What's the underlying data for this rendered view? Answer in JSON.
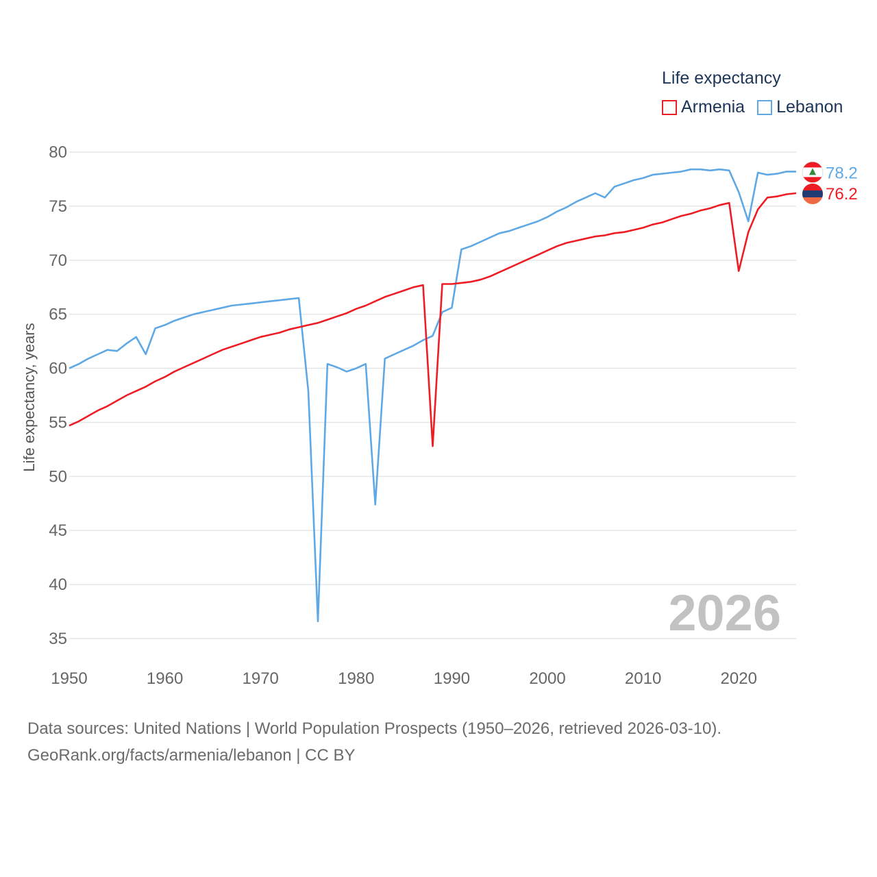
{
  "legend": {
    "title": "Life expectancy",
    "armenia_label": "Armenia",
    "lebanon_label": "Lebanon"
  },
  "colors": {
    "armenia": "#ee1c25",
    "lebanon": "#5ea8e5",
    "grid": "#e6e6e6",
    "tick": "#666666",
    "year": "#c2c2c2"
  },
  "year_watermark": "2026",
  "source_line1": "Data sources: United Nations | World Population Prospects (1950–2026, retrieved 2026-03-10).",
  "source_line2": "GeoRank.org/facts/armenia/lebanon | CC BY",
  "chart_data": {
    "type": "line",
    "title": "Life expectancy",
    "xlabel": "",
    "ylabel": "Life expectancy, years",
    "xlim": [
      1950,
      2026
    ],
    "ylim": [
      35,
      80
    ],
    "yticks": [
      35,
      40,
      45,
      50,
      55,
      60,
      65,
      70,
      75,
      80
    ],
    "xticks": [
      1950,
      1960,
      1970,
      1980,
      1990,
      2000,
      2010,
      2020
    ],
    "grid": true,
    "legend_position": "top-right",
    "end_labels": {
      "Lebanon": "78.2",
      "Armenia": "76.2"
    },
    "x": [
      1950,
      1951,
      1952,
      1953,
      1954,
      1955,
      1956,
      1957,
      1958,
      1959,
      1960,
      1961,
      1962,
      1963,
      1964,
      1965,
      1966,
      1967,
      1968,
      1969,
      1970,
      1971,
      1972,
      1973,
      1974,
      1975,
      1976,
      1977,
      1978,
      1979,
      1980,
      1981,
      1982,
      1983,
      1984,
      1985,
      1986,
      1987,
      1988,
      1989,
      1990,
      1991,
      1992,
      1993,
      1994,
      1995,
      1996,
      1997,
      1998,
      1999,
      2000,
      2001,
      2002,
      2003,
      2004,
      2005,
      2006,
      2007,
      2008,
      2009,
      2010,
      2011,
      2012,
      2013,
      2014,
      2015,
      2016,
      2017,
      2018,
      2019,
      2020,
      2021,
      2022,
      2023,
      2024,
      2025,
      2026
    ],
    "series": [
      {
        "name": "Armenia",
        "color": "#ee1c25",
        "values": [
          54.7,
          55.1,
          55.6,
          56.1,
          56.5,
          57.0,
          57.5,
          57.9,
          58.3,
          58.8,
          59.2,
          59.7,
          60.1,
          60.5,
          60.9,
          61.3,
          61.7,
          62.0,
          62.3,
          62.6,
          62.9,
          63.1,
          63.3,
          63.6,
          63.8,
          64.0,
          64.2,
          64.5,
          64.8,
          65.1,
          65.5,
          65.8,
          66.2,
          66.6,
          66.9,
          67.2,
          67.5,
          67.7,
          52.8,
          67.8,
          67.8,
          67.9,
          68.0,
          68.2,
          68.5,
          68.9,
          69.3,
          69.7,
          70.1,
          70.5,
          70.9,
          71.3,
          71.6,
          71.8,
          72.0,
          72.2,
          72.3,
          72.5,
          72.6,
          72.8,
          73.0,
          73.3,
          73.5,
          73.8,
          74.1,
          74.3,
          74.6,
          74.8,
          75.1,
          75.3,
          69.0,
          72.6,
          74.7,
          75.8,
          75.9,
          76.1,
          76.2
        ]
      },
      {
        "name": "Lebanon",
        "color": "#5ea8e5",
        "values": [
          60.0,
          60.4,
          60.9,
          61.3,
          61.7,
          61.6,
          62.3,
          62.9,
          61.3,
          63.7,
          64.0,
          64.4,
          64.7,
          65.0,
          65.2,
          65.4,
          65.6,
          65.8,
          65.9,
          66.0,
          66.1,
          66.2,
          66.3,
          66.4,
          66.5,
          57.9,
          36.6,
          60.4,
          60.1,
          59.7,
          60.0,
          60.4,
          47.4,
          60.9,
          61.3,
          61.7,
          62.1,
          62.6,
          63.0,
          65.2,
          65.6,
          71.0,
          71.3,
          71.7,
          72.1,
          72.5,
          72.7,
          73.0,
          73.3,
          73.6,
          74.0,
          74.5,
          74.9,
          75.4,
          75.8,
          76.2,
          75.8,
          76.8,
          77.1,
          77.4,
          77.6,
          77.9,
          78.0,
          78.1,
          78.2,
          78.4,
          78.4,
          78.3,
          78.4,
          78.3,
          76.3,
          73.6,
          78.1,
          77.9,
          78.0,
          78.2,
          78.2
        ]
      }
    ]
  }
}
